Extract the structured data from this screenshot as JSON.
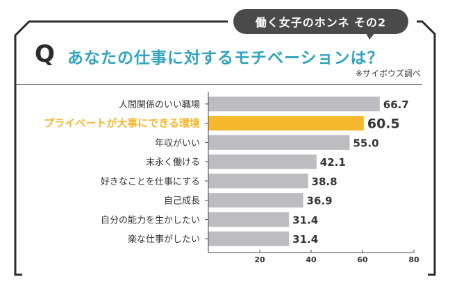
{
  "header": {
    "badge_text": "働く女子のホンネ その2",
    "q_mark": "Q",
    "question": "あなたの仕事に対するモチベーションは？",
    "source": "※サイボウズ調べ"
  },
  "colors": {
    "bar": "#bcbcc1",
    "highlight": "#f5b82e",
    "question": "#2fa3bf",
    "badge": "#4a4a4a"
  },
  "chart_data": {
    "type": "bar",
    "orientation": "horizontal",
    "categories": [
      "人間関係のいい職場",
      "プライベートが大事にできる環境",
      "年収がいい",
      "末永く働ける",
      "好きなことを仕事にする",
      "自己成長",
      "自分の能力を生かしたい",
      "楽な仕事がしたい"
    ],
    "values": [
      66.7,
      60.5,
      55.0,
      42.1,
      38.8,
      36.9,
      31.4,
      31.4
    ],
    "value_labels": [
      "66.7",
      "60.5",
      "55.0",
      "42.1",
      "38.8",
      "36.9",
      "31.4",
      "31.4"
    ],
    "highlight_index": 1,
    "xlim": [
      0,
      80
    ],
    "xticks": [
      20,
      40,
      60,
      80
    ],
    "xtick_labels": [
      "20",
      "40",
      "60",
      "80"
    ],
    "grid": false,
    "title": "",
    "xlabel": "",
    "ylabel": ""
  }
}
